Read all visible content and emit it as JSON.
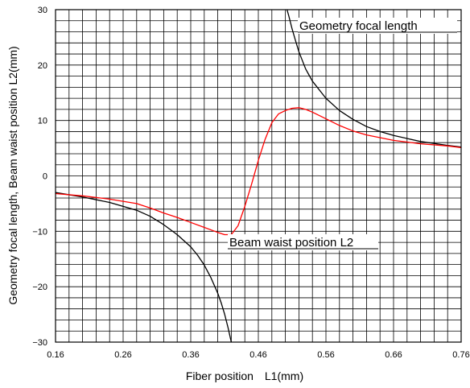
{
  "chart_data": {
    "type": "line",
    "xlabel": "Fiber position　L1(mm)",
    "ylabel": "Geometry focal length, Beam waist position L2(mm)",
    "xlim": [
      0.16,
      0.76
    ],
    "ylim": [
      -30,
      30
    ],
    "x_ticks": [
      0.16,
      0.26,
      0.36,
      0.46,
      0.56,
      0.66,
      0.76
    ],
    "x_tick_labels": [
      "0.16",
      "0.26",
      "0.36",
      "0.46",
      "0.56",
      "0.66",
      "0.76"
    ],
    "y_ticks": [
      30,
      20,
      10,
      0,
      -10,
      -20,
      -30
    ],
    "y_tick_labels": [
      "30",
      "20",
      "10",
      "0",
      "−10",
      "−20",
      "−30"
    ],
    "grid": true,
    "minor_grid": {
      "x_step": 0.02,
      "y_step": 2
    },
    "series": [
      {
        "name": "Geometry focal length",
        "color": "#000000",
        "segments": [
          {
            "x": [
              0.16,
              0.2,
              0.24,
              0.28,
              0.3,
              0.32,
              0.34,
              0.36,
              0.37,
              0.38,
              0.39,
              0.4,
              0.405,
              0.41,
              0.415,
              0.42,
              0.425
            ],
            "y": [
              -3.0,
              -3.8,
              -4.8,
              -6.2,
              -7.3,
              -8.8,
              -10.6,
              -12.8,
              -14.3,
              -16.1,
              -18.4,
              -21.2,
              -22.9,
              -24.9,
              -27.3,
              -30.0,
              -33.0
            ]
          },
          {
            "x": [
              0.5,
              0.505,
              0.51,
              0.515,
              0.52,
              0.53,
              0.54,
              0.56,
              0.58,
              0.6,
              0.62,
              0.64,
              0.66,
              0.7,
              0.74,
              0.76
            ],
            "y": [
              31.0,
              28.9,
              26.5,
              24.4,
              22.4,
              19.3,
              17.1,
              14.0,
              11.8,
              10.2,
              8.9,
              8.0,
              7.3,
              6.2,
              5.5,
              5.2
            ]
          }
        ]
      },
      {
        "name": "Beam waist position L2",
        "color": "#ff0000",
        "segments": [
          {
            "x": [
              0.16,
              0.2,
              0.24,
              0.28,
              0.3,
              0.32,
              0.34,
              0.36,
              0.38,
              0.4,
              0.41,
              0.42,
              0.43,
              0.44,
              0.45,
              0.46,
              0.47,
              0.48,
              0.49,
              0.5,
              0.51,
              0.52,
              0.53,
              0.54,
              0.56,
              0.58,
              0.6,
              0.62,
              0.64,
              0.66,
              0.7,
              0.74,
              0.76
            ],
            "y": [
              -3.2,
              -3.6,
              -4.2,
              -5.0,
              -5.8,
              -6.7,
              -7.5,
              -8.4,
              -9.3,
              -10.2,
              -10.6,
              -10.6,
              -9.0,
              -5.5,
              -1.5,
              2.8,
              6.6,
              9.6,
              11.2,
              11.8,
              12.2,
              12.3,
              12.0,
              11.5,
              10.3,
              9.1,
              8.1,
              7.4,
              6.9,
              6.4,
              5.8,
              5.4,
              5.1
            ]
          }
        ]
      }
    ],
    "annotations": [
      {
        "text": "Geometry focal length",
        "series": "Geometry focal length",
        "underline": true
      },
      {
        "text": "Beam waist position L2",
        "series": "Beam waist position L2",
        "underline": true
      }
    ]
  }
}
